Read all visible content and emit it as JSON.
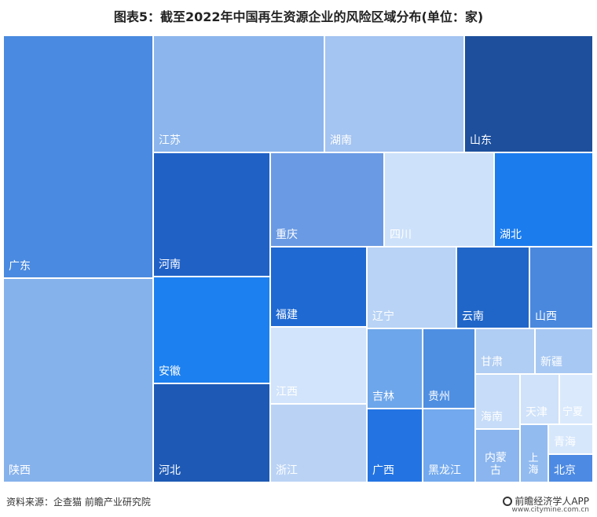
{
  "title": "图表5：截至2022年中国再生资源企业的风险区域分布(单位：家)",
  "source_text": "资料来源：企查猫 前瞻产业研究院",
  "brand_text": "前瞻经济学人APP",
  "brand_url": "www.citymine.com.cn",
  "chart_data": {
    "type": "treemap",
    "title": "图表5：截至2022年中国再生资源企业的风险区域分布(单位：家)",
    "unit": "家",
    "items": [
      {
        "name": "广东",
        "color": "#4a8ae0"
      },
      {
        "name": "陕西",
        "color": "#86b2ec"
      },
      {
        "name": "江苏",
        "color": "#8bb5ec"
      },
      {
        "name": "湖南",
        "color": "#a4c4f1"
      },
      {
        "name": "山东",
        "color": "#1d4f9c"
      },
      {
        "name": "河南",
        "color": "#2061c6"
      },
      {
        "name": "安徽",
        "color": "#1d80f0"
      },
      {
        "name": "河北",
        "color": "#1e5ab5"
      },
      {
        "name": "重庆",
        "color": "#6a9ae3"
      },
      {
        "name": "四川",
        "color": "#cde1fa"
      },
      {
        "name": "湖北",
        "color": "#1b7cee"
      },
      {
        "name": "福建",
        "color": "#1f69d2"
      },
      {
        "name": "辽宁",
        "color": "#b8d3f5"
      },
      {
        "name": "云南",
        "color": "#2066c8"
      },
      {
        "name": "山西",
        "color": "#4a88de"
      },
      {
        "name": "江西",
        "color": "#d2e4fb"
      },
      {
        "name": "浙江",
        "color": "#bad3f5"
      },
      {
        "name": "吉林",
        "color": "#6da6ea"
      },
      {
        "name": "贵州",
        "color": "#4f8fe2"
      },
      {
        "name": "广西",
        "color": "#2374e2"
      },
      {
        "name": "黑龙江",
        "color": "#73a9ee"
      },
      {
        "name": "甘肃",
        "color": "#b0cdf3"
      },
      {
        "name": "新疆",
        "color": "#a7c8f3"
      },
      {
        "name": "海南",
        "color": "#c6dcf8"
      },
      {
        "name": "天津",
        "color": "#cfe2fa"
      },
      {
        "name": "宁夏",
        "color": "#dae9fc"
      },
      {
        "name": "内蒙古",
        "color": "#8ab5ee"
      },
      {
        "name": "上海",
        "color": "#92bbf0"
      },
      {
        "name": "青海",
        "color": "#d6e7fc"
      },
      {
        "name": "北京",
        "color": "#4c8ae3"
      }
    ]
  }
}
